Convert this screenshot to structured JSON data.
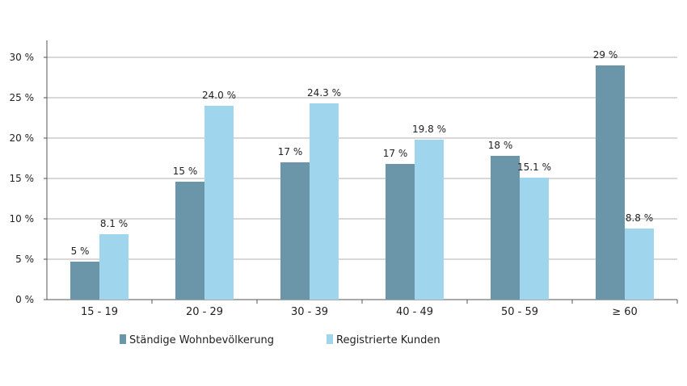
{
  "chart_data": {
    "type": "bar",
    "categories": [
      "15 - 19",
      "20 - 29",
      "30 - 39",
      "40 - 49",
      "50 - 59",
      "≥ 60"
    ],
    "series": [
      {
        "name": "Ständige Wohnbevölkerung",
        "color": "#6b95a8",
        "values": [
          4.7,
          14.6,
          17.0,
          16.8,
          17.8,
          29.0
        ],
        "labels": [
          "5 %",
          "15 %",
          "17 %",
          "17 %",
          "18 %",
          "29 %"
        ]
      },
      {
        "name": "Registrierte Kunden",
        "color": "#9fd6ee",
        "values": [
          8.1,
          24.0,
          24.3,
          19.8,
          15.1,
          8.8
        ],
        "labels": [
          "8.1 %",
          "24.0 %",
          "24.3 %",
          "19.8 %",
          "15.1 %",
          "8.8 %"
        ]
      }
    ],
    "yticks": [
      "0 %",
      "5 %",
      "10 %",
      "15 %",
      "20 %",
      "25 %",
      "30 %"
    ],
    "ylim": [
      0,
      30
    ],
    "grid": true,
    "legend": "bottom"
  }
}
